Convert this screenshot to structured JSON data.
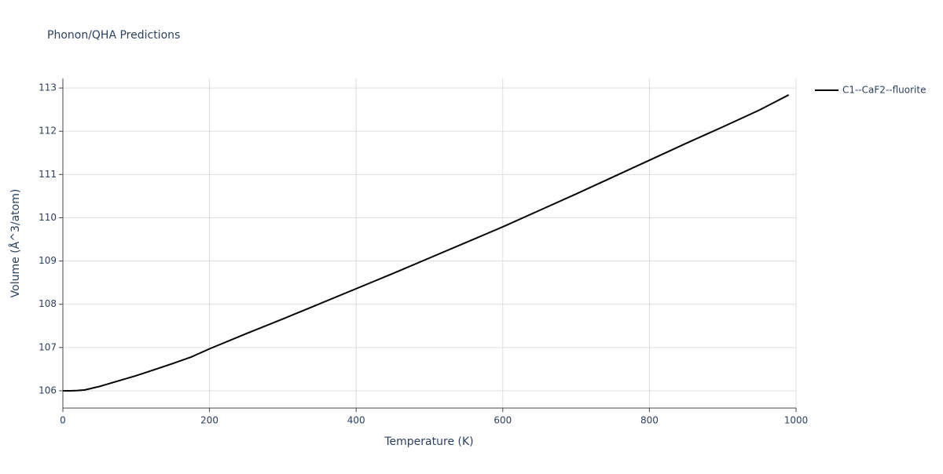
{
  "chart_data": {
    "type": "line",
    "title": "Phonon/QHA Predictions",
    "x_label": "Temperature (K)",
    "y_label": "Volume (Å^3/atom)",
    "x": [
      0,
      10,
      20,
      30,
      40,
      50,
      60,
      70,
      80,
      90,
      100,
      120,
      150,
      175,
      200,
      250,
      300,
      350,
      400,
      450,
      500,
      550,
      600,
      650,
      700,
      750,
      800,
      850,
      900,
      950,
      990
    ],
    "series": [
      {
        "name": "C1--CaF2--fluorite",
        "color": "#000000",
        "values": [
          106.0,
          106.0,
          106.005,
          106.02,
          106.06,
          106.1,
          106.15,
          106.2,
          106.25,
          106.3,
          106.35,
          106.46,
          106.63,
          106.78,
          106.97,
          107.32,
          107.66,
          108.01,
          108.36,
          108.71,
          109.07,
          109.43,
          109.79,
          110.17,
          110.55,
          110.94,
          111.33,
          111.72,
          112.1,
          112.49,
          112.84
        ]
      }
    ],
    "xlim": [
      0,
      1000
    ],
    "xticks": [
      0,
      200,
      400,
      600,
      800,
      1000
    ],
    "ylim": [
      105.6,
      113.22
    ],
    "yticks": [
      106,
      107,
      108,
      109,
      110,
      111,
      112,
      113
    ],
    "grid": true,
    "legend": "right"
  }
}
